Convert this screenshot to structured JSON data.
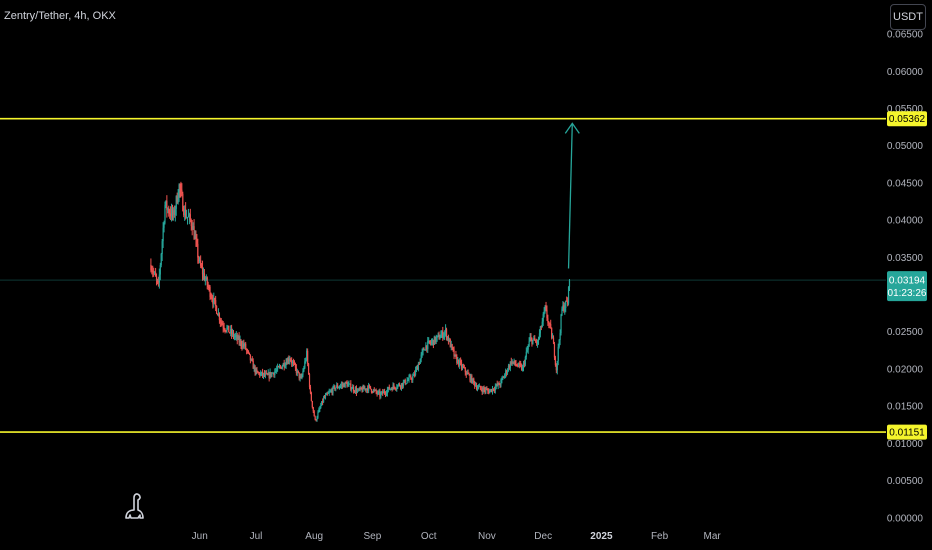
{
  "header": {
    "symbol_title": "Zentry/Tether, 4h, OKX",
    "currency_button": "USDT"
  },
  "colors": {
    "background": "#000000",
    "up": "#26a69a",
    "down": "#ef5350",
    "level_line": "#f5f52c",
    "arrow": "#26a69a",
    "current_price_line": "#26a69a"
  },
  "logo_icon": "tradingview-dino-icon",
  "chart_data": {
    "type": "candlestick",
    "title": "Zentry/Tether, 4h, OKX",
    "ylim": [
      -0.0003,
      0.0685
    ],
    "y_ticks": [
      "0.06500",
      "0.06000",
      "0.05500",
      "0.05000",
      "0.04500",
      "0.04000",
      "0.03500",
      "0.03000",
      "0.02500",
      "0.02000",
      "0.01500",
      "0.01000",
      "0.00500",
      "0.00000"
    ],
    "x_ticks": [
      {
        "label": "Jun",
        "t": 0.0
      },
      {
        "label": "Jul",
        "t": 30.0
      },
      {
        "label": "Aug",
        "t": 61.0
      },
      {
        "label": "Sep",
        "t": 92.0
      },
      {
        "label": "Oct",
        "t": 122.0
      },
      {
        "label": "Nov",
        "t": 153.0
      },
      {
        "label": "Dec",
        "t": 183.0
      },
      {
        "label": "2025",
        "t": 214.0,
        "year": true
      },
      {
        "label": "Feb",
        "t": 245.0
      },
      {
        "label": "Mar",
        "t": 273.0
      }
    ],
    "xlim": [
      -10.5,
      298.5
    ],
    "keypoints": [
      {
        "t": -26.0,
        "p": 0.034
      },
      {
        "t": -22.0,
        "p": 0.031
      },
      {
        "t": -18.5,
        "p": 0.042
      },
      {
        "t": -14.0,
        "p": 0.0405
      },
      {
        "t": -11.0,
        "p": 0.0445
      },
      {
        "t": -8.0,
        "p": 0.041
      },
      {
        "t": -4.0,
        "p": 0.0395
      },
      {
        "t": 0.0,
        "p": 0.034
      },
      {
        "t": 6.0,
        "p": 0.03
      },
      {
        "t": 12.0,
        "p": 0.026
      },
      {
        "t": 18.0,
        "p": 0.0245
      },
      {
        "t": 24.0,
        "p": 0.023
      },
      {
        "t": 30.0,
        "p": 0.0195
      },
      {
        "t": 36.0,
        "p": 0.019
      },
      {
        "t": 42.0,
        "p": 0.02
      },
      {
        "t": 48.0,
        "p": 0.0215
      },
      {
        "t": 54.0,
        "p": 0.0185
      },
      {
        "t": 57.0,
        "p": 0.022
      },
      {
        "t": 59.0,
        "p": 0.0165
      },
      {
        "t": 61.5,
        "p": 0.013
      },
      {
        "t": 66.0,
        "p": 0.016
      },
      {
        "t": 72.0,
        "p": 0.0175
      },
      {
        "t": 78.0,
        "p": 0.018
      },
      {
        "t": 84.0,
        "p": 0.017
      },
      {
        "t": 90.0,
        "p": 0.0175
      },
      {
        "t": 96.0,
        "p": 0.0165
      },
      {
        "t": 102.0,
        "p": 0.0175
      },
      {
        "t": 108.0,
        "p": 0.018
      },
      {
        "t": 114.0,
        "p": 0.019
      },
      {
        "t": 120.0,
        "p": 0.023
      },
      {
        "t": 126.0,
        "p": 0.024
      },
      {
        "t": 131.0,
        "p": 0.025
      },
      {
        "t": 136.0,
        "p": 0.0215
      },
      {
        "t": 142.0,
        "p": 0.0195
      },
      {
        "t": 148.0,
        "p": 0.0175
      },
      {
        "t": 154.0,
        "p": 0.017
      },
      {
        "t": 160.0,
        "p": 0.018
      },
      {
        "t": 166.0,
        "p": 0.021
      },
      {
        "t": 172.0,
        "p": 0.02
      },
      {
        "t": 176.0,
        "p": 0.024
      },
      {
        "t": 180.0,
        "p": 0.0235
      },
      {
        "t": 184.0,
        "p": 0.028
      },
      {
        "t": 188.0,
        "p": 0.024
      },
      {
        "t": 190.0,
        "p": 0.02
      },
      {
        "t": 193.0,
        "p": 0.028
      },
      {
        "t": 196.0,
        "p": 0.029
      },
      {
        "t": 197.0,
        "p": 0.0319
      }
    ],
    "levels": [
      {
        "name": "resistance",
        "value": 0.05362,
        "label": "0.05362"
      },
      {
        "name": "support",
        "value": 0.01151,
        "label": "0.01151"
      }
    ],
    "current_price": {
      "value": 0.03194,
      "label": "0.03194",
      "countdown": "01:23:26"
    },
    "arrow": {
      "from": {
        "t": 196.5,
        "p": 0.0335
      },
      "to": {
        "t": 198.5,
        "p": 0.053
      }
    }
  }
}
